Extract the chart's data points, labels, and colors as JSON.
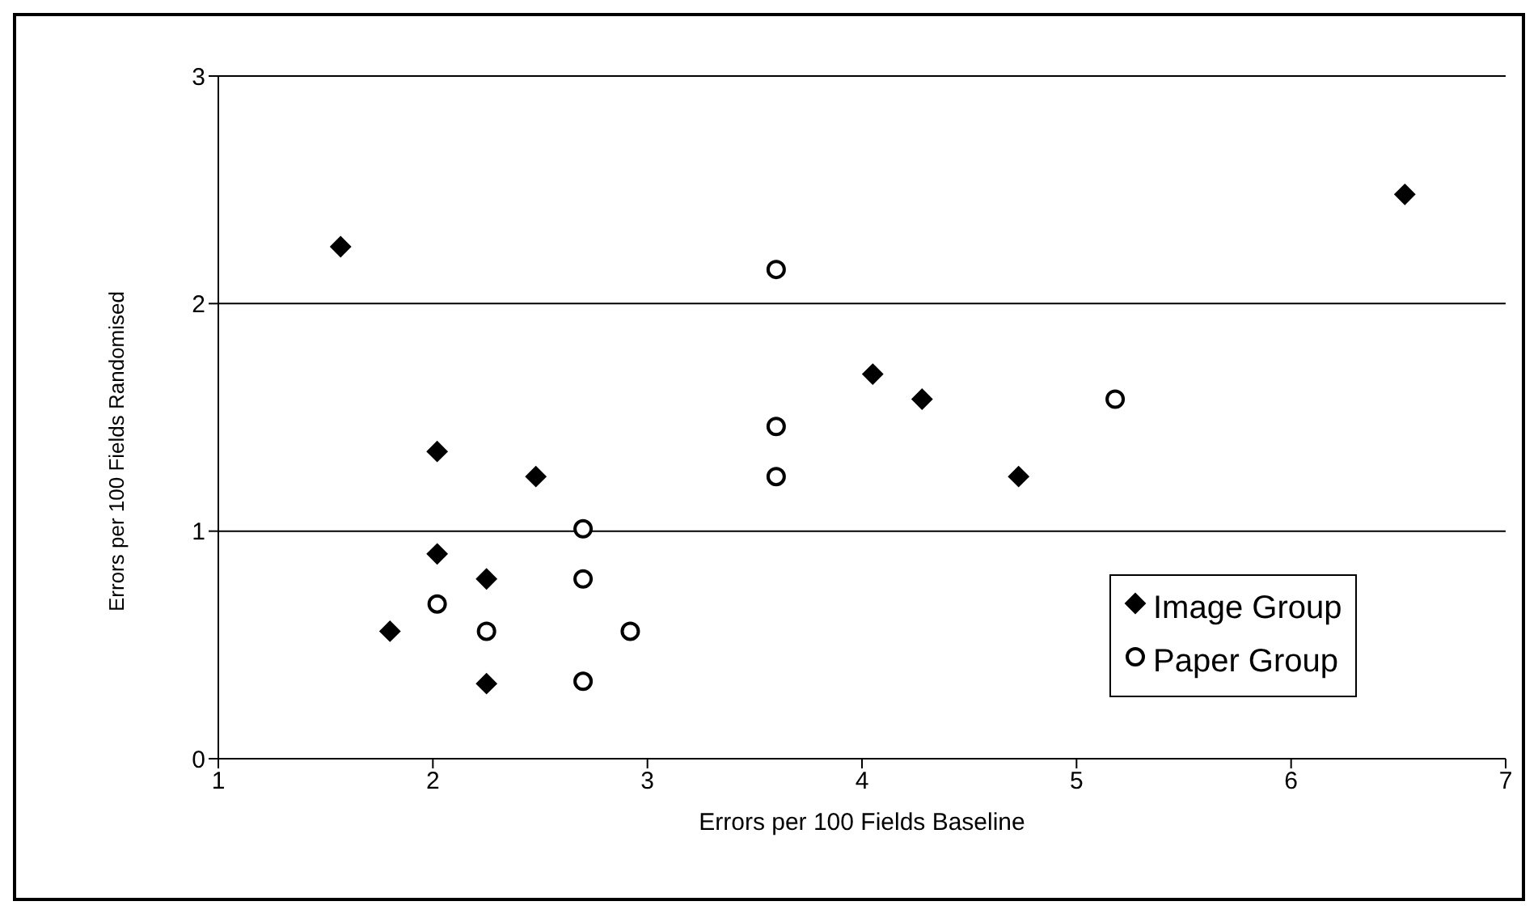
{
  "chart_data": {
    "type": "scatter",
    "xlabel": "Errors per 100 Fields Baseline",
    "ylabel": "Errors per 100 Fields Randomised",
    "xlim": [
      1,
      7
    ],
    "xticks": [
      1,
      2,
      3,
      4,
      5,
      6,
      7
    ],
    "ylim": [
      0,
      3
    ],
    "yticks": [
      0,
      1,
      2,
      3
    ],
    "grid": "y",
    "legend": "bottom right",
    "series": [
      {
        "name": "Image Group",
        "color": "#000000",
        "marker": "diamond",
        "x": [
          1.57,
          2.02,
          2.48,
          2.02,
          2.25,
          1.8,
          2.25,
          4.05,
          4.28,
          4.73,
          6.53
        ],
        "values": [
          2.25,
          1.35,
          1.24,
          0.9,
          0.79,
          0.56,
          0.33,
          1.69,
          1.58,
          1.24,
          2.48
        ]
      },
      {
        "name": "Paper Group",
        "color": "#000000",
        "marker": "circle",
        "x": [
          3.6,
          3.6,
          3.6,
          2.7,
          2.7,
          2.02,
          2.25,
          2.92,
          2.7,
          5.18
        ],
        "values": [
          2.15,
          1.46,
          1.24,
          1.01,
          0.79,
          0.68,
          0.56,
          0.56,
          0.34,
          1.58
        ]
      }
    ]
  }
}
